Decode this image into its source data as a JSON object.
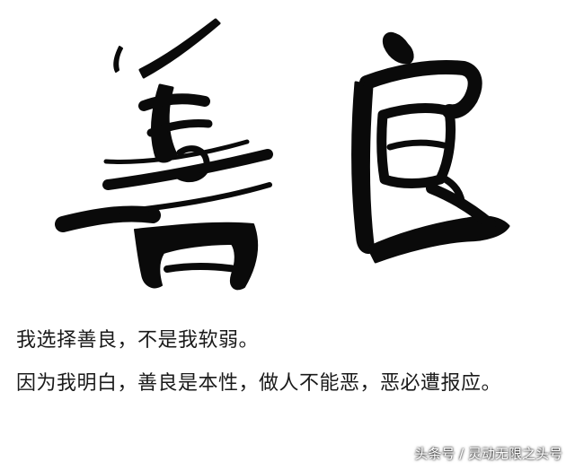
{
  "artwork": {
    "calligraphy": "善良"
  },
  "text": {
    "line1": "我选择善良，不是我软弱。",
    "line2": "因为我明白，善良是本性，做人不能恶，恶必遭报应。"
  },
  "watermark": {
    "text": "头条号 / 灵动无限之头号"
  },
  "colors": {
    "ink": "#0a0a0a",
    "background": "#ffffff",
    "text": "#1a1a1a"
  }
}
